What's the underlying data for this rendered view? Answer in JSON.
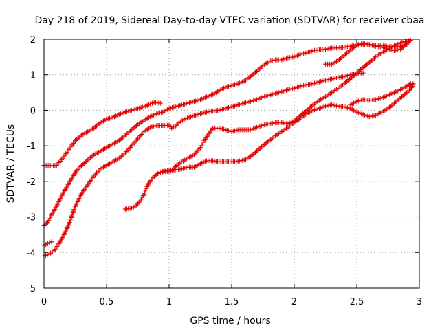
{
  "chart_data": {
    "type": "scatter",
    "title": "Day 218 of 2019, Sidereal Day-to-day VTEC variation (SDTVAR) for receiver cbaa",
    "xlabel": "GPS time / hours",
    "ylabel": "SDTVAR / TECUs",
    "xlim": [
      0,
      3
    ],
    "ylim": [
      -5,
      2
    ],
    "xticks": [
      0,
      0.5,
      1,
      1.5,
      2,
      2.5,
      3
    ],
    "xtick_labels": [
      "0",
      "0.5",
      "1",
      "1.5",
      "2",
      "2.5",
      "3"
    ],
    "yticks": [
      -5,
      -4,
      -3,
      -2,
      -1,
      0,
      1,
      2
    ],
    "ytick_labels": [
      "-5",
      "-4",
      "-3",
      "-2",
      "-1",
      "0",
      "1",
      "2"
    ],
    "grid": true,
    "marker": "+",
    "marker_color": "#e00000",
    "series": [
      {
        "points": [
          [
            0,
            -1.55
          ],
          [
            0.05,
            -1.55
          ],
          [
            0.1,
            -1.55
          ],
          [
            0.15,
            -1.35
          ],
          [
            0.2,
            -1.1
          ],
          [
            0.25,
            -0.85
          ],
          [
            0.3,
            -0.7
          ],
          [
            0.35,
            -0.6
          ],
          [
            0.4,
            -0.5
          ],
          [
            0.45,
            -0.35
          ],
          [
            0.5,
            -0.25
          ],
          [
            0.55,
            -0.2
          ],
          [
            0.6,
            -0.12
          ],
          [
            0.65,
            -0.05
          ],
          [
            0.7,
            0.0
          ],
          [
            0.75,
            0.05
          ],
          [
            0.8,
            0.1
          ],
          [
            0.85,
            0.18
          ],
          [
            0.88,
            0.22
          ],
          [
            0.93,
            0.2
          ]
        ]
      },
      {
        "points": [
          [
            0,
            -3.25
          ],
          [
            0.03,
            -3.15
          ],
          [
            0.06,
            -2.95
          ],
          [
            0.1,
            -2.7
          ],
          [
            0.15,
            -2.35
          ],
          [
            0.2,
            -2.05
          ],
          [
            0.25,
            -1.75
          ],
          [
            0.3,
            -1.55
          ],
          [
            0.35,
            -1.4
          ],
          [
            0.4,
            -1.25
          ],
          [
            0.45,
            -1.15
          ],
          [
            0.5,
            -1.05
          ],
          [
            0.55,
            -0.95
          ],
          [
            0.6,
            -0.85
          ],
          [
            0.65,
            -0.7
          ],
          [
            0.7,
            -0.55
          ],
          [
            0.75,
            -0.4
          ],
          [
            0.8,
            -0.28
          ],
          [
            0.85,
            -0.18
          ],
          [
            0.9,
            -0.1
          ],
          [
            0.95,
            -0.05
          ],
          [
            1.0,
            0.05
          ],
          [
            1.05,
            0.1
          ],
          [
            1.1,
            0.15
          ],
          [
            1.15,
            0.2
          ],
          [
            1.2,
            0.25
          ],
          [
            1.25,
            0.3
          ],
          [
            1.3,
            0.38
          ],
          [
            1.35,
            0.45
          ],
          [
            1.4,
            0.55
          ],
          [
            1.45,
            0.65
          ],
          [
            1.5,
            0.7
          ],
          [
            1.55,
            0.75
          ],
          [
            1.6,
            0.82
          ],
          [
            1.65,
            0.95
          ],
          [
            1.7,
            1.1
          ],
          [
            1.75,
            1.25
          ],
          [
            1.8,
            1.38
          ],
          [
            1.85,
            1.42
          ],
          [
            1.9,
            1.42
          ],
          [
            1.95,
            1.48
          ],
          [
            2.0,
            1.5
          ],
          [
            2.05,
            1.58
          ],
          [
            2.1,
            1.62
          ],
          [
            2.15,
            1.68
          ],
          [
            2.2,
            1.7
          ],
          [
            2.25,
            1.72
          ],
          [
            2.3,
            1.75
          ],
          [
            2.35,
            1.75
          ],
          [
            2.4,
            1.78
          ],
          [
            2.45,
            1.8
          ],
          [
            2.5,
            1.85
          ],
          [
            2.55,
            1.88
          ],
          [
            2.6,
            1.85
          ],
          [
            2.65,
            1.83
          ],
          [
            2.7,
            1.82
          ],
          [
            2.75,
            1.8
          ],
          [
            2.8,
            1.78
          ],
          [
            2.85,
            1.8
          ],
          [
            2.9,
            1.85
          ]
        ]
      },
      {
        "points": [
          [
            0,
            -3.8
          ],
          [
            0.03,
            -3.75
          ],
          [
            0.06,
            -3.7
          ]
        ]
      },
      {
        "points": [
          [
            0,
            -4.1
          ],
          [
            0.04,
            -4.05
          ],
          [
            0.08,
            -3.95
          ],
          [
            0.12,
            -3.75
          ],
          [
            0.16,
            -3.5
          ],
          [
            0.2,
            -3.2
          ],
          [
            0.25,
            -2.7
          ],
          [
            0.3,
            -2.35
          ],
          [
            0.35,
            -2.1
          ],
          [
            0.4,
            -1.85
          ],
          [
            0.45,
            -1.65
          ],
          [
            0.5,
            -1.55
          ],
          [
            0.55,
            -1.45
          ],
          [
            0.6,
            -1.35
          ],
          [
            0.65,
            -1.2
          ],
          [
            0.7,
            -1.0
          ],
          [
            0.75,
            -0.8
          ],
          [
            0.8,
            -0.6
          ],
          [
            0.85,
            -0.48
          ],
          [
            0.9,
            -0.43
          ],
          [
            0.95,
            -0.43
          ],
          [
            1.0,
            -0.42
          ],
          [
            1.02,
            -0.5
          ],
          [
            1.05,
            -0.45
          ],
          [
            1.08,
            -0.35
          ],
          [
            1.12,
            -0.25
          ],
          [
            1.2,
            -0.15
          ],
          [
            1.25,
            -0.1
          ],
          [
            1.3,
            -0.05
          ],
          [
            1.35,
            -0.02
          ],
          [
            1.4,
            0.0
          ],
          [
            1.45,
            0.05
          ],
          [
            1.5,
            0.1
          ],
          [
            1.55,
            0.15
          ],
          [
            1.6,
            0.2
          ],
          [
            1.65,
            0.25
          ],
          [
            1.7,
            0.3
          ],
          [
            1.75,
            0.38
          ],
          [
            1.8,
            0.42
          ],
          [
            1.85,
            0.48
          ],
          [
            1.9,
            0.52
          ],
          [
            1.95,
            0.58
          ],
          [
            2.0,
            0.62
          ],
          [
            2.05,
            0.68
          ],
          [
            2.1,
            0.72
          ],
          [
            2.15,
            0.75
          ],
          [
            2.2,
            0.8
          ],
          [
            2.25,
            0.85
          ],
          [
            2.3,
            0.88
          ],
          [
            2.35,
            0.92
          ],
          [
            2.4,
            0.95
          ],
          [
            2.45,
            1.0
          ],
          [
            2.5,
            1.02
          ],
          [
            2.55,
            1.05
          ]
        ]
      },
      {
        "points": [
          [
            0.65,
            -2.78
          ],
          [
            0.7,
            -2.75
          ],
          [
            0.73,
            -2.7
          ],
          [
            0.77,
            -2.55
          ],
          [
            0.8,
            -2.35
          ],
          [
            0.83,
            -2.1
          ],
          [
            0.87,
            -1.9
          ],
          [
            0.92,
            -1.75
          ],
          [
            0.97,
            -1.72
          ],
          [
            1.0,
            -1.72
          ],
          [
            1.03,
            -1.7
          ],
          [
            1.06,
            -1.55
          ],
          [
            1.1,
            -1.45
          ],
          [
            1.15,
            -1.35
          ],
          [
            1.2,
            -1.25
          ],
          [
            1.25,
            -1.05
          ],
          [
            1.28,
            -0.85
          ],
          [
            1.32,
            -0.65
          ],
          [
            1.35,
            -0.5
          ],
          [
            1.4,
            -0.5
          ],
          [
            1.45,
            -0.55
          ],
          [
            1.5,
            -0.6
          ],
          [
            1.55,
            -0.55
          ],
          [
            1.6,
            -0.55
          ],
          [
            1.65,
            -0.55
          ],
          [
            1.7,
            -0.48
          ],
          [
            1.75,
            -0.42
          ],
          [
            1.8,
            -0.38
          ],
          [
            1.85,
            -0.35
          ],
          [
            1.9,
            -0.35
          ],
          [
            1.95,
            -0.38
          ],
          [
            2.0,
            -0.3
          ],
          [
            2.05,
            -0.15
          ],
          [
            2.1,
            0.0
          ],
          [
            2.15,
            0.15
          ],
          [
            2.2,
            0.28
          ],
          [
            2.25,
            0.38
          ],
          [
            2.3,
            0.5
          ],
          [
            2.35,
            0.62
          ],
          [
            2.4,
            0.75
          ],
          [
            2.45,
            0.9
          ],
          [
            2.5,
            1.05
          ],
          [
            2.55,
            1.2
          ],
          [
            2.6,
            1.35
          ],
          [
            2.65,
            1.5
          ],
          [
            2.7,
            1.62
          ],
          [
            2.75,
            1.72
          ],
          [
            2.8,
            1.82
          ],
          [
            2.85,
            1.9
          ],
          [
            2.9,
            1.95
          ],
          [
            2.93,
            1.97
          ]
        ]
      },
      {
        "points": [
          [
            0.95,
            -1.72
          ],
          [
            1.0,
            -1.68
          ],
          [
            1.05,
            -1.68
          ],
          [
            1.1,
            -1.65
          ],
          [
            1.15,
            -1.6
          ],
          [
            1.2,
            -1.6
          ],
          [
            1.25,
            -1.5
          ],
          [
            1.3,
            -1.42
          ],
          [
            1.35,
            -1.42
          ],
          [
            1.4,
            -1.45
          ],
          [
            1.45,
            -1.45
          ],
          [
            1.5,
            -1.45
          ],
          [
            1.55,
            -1.43
          ],
          [
            1.6,
            -1.4
          ],
          [
            1.65,
            -1.3
          ],
          [
            1.7,
            -1.15
          ],
          [
            1.75,
            -1.0
          ],
          [
            1.8,
            -0.85
          ],
          [
            1.85,
            -0.72
          ],
          [
            1.9,
            -0.6
          ],
          [
            1.95,
            -0.48
          ],
          [
            2.0,
            -0.35
          ],
          [
            2.05,
            -0.22
          ],
          [
            2.1,
            -0.1
          ],
          [
            2.15,
            0.0
          ],
          [
            2.2,
            0.05
          ],
          [
            2.25,
            0.12
          ],
          [
            2.3,
            0.15
          ],
          [
            2.35,
            0.12
          ],
          [
            2.4,
            0.1
          ],
          [
            2.45,
            0.05
          ],
          [
            2.5,
            -0.05
          ],
          [
            2.55,
            -0.12
          ],
          [
            2.6,
            -0.18
          ],
          [
            2.65,
            -0.15
          ],
          [
            2.7,
            -0.05
          ],
          [
            2.75,
            0.05
          ],
          [
            2.8,
            0.2
          ],
          [
            2.85,
            0.35
          ],
          [
            2.9,
            0.5
          ],
          [
            2.93,
            0.6
          ],
          [
            2.95,
            0.72
          ]
        ]
      },
      {
        "points": [
          [
            2.25,
            1.3
          ],
          [
            2.3,
            1.3
          ],
          [
            2.35,
            1.4
          ],
          [
            2.4,
            1.55
          ],
          [
            2.45,
            1.7
          ],
          [
            2.5,
            1.82
          ],
          [
            2.55,
            1.85
          ],
          [
            2.6,
            1.85
          ],
          [
            2.65,
            1.8
          ],
          [
            2.7,
            1.78
          ],
          [
            2.75,
            1.72
          ],
          [
            2.8,
            1.68
          ],
          [
            2.85,
            1.72
          ],
          [
            2.9,
            1.88
          ],
          [
            2.92,
            1.95
          ]
        ]
      },
      {
        "points": [
          [
            2.45,
            0.15
          ],
          [
            2.5,
            0.25
          ],
          [
            2.55,
            0.3
          ],
          [
            2.6,
            0.28
          ],
          [
            2.65,
            0.3
          ],
          [
            2.7,
            0.35
          ],
          [
            2.75,
            0.42
          ],
          [
            2.8,
            0.5
          ],
          [
            2.85,
            0.58
          ],
          [
            2.9,
            0.68
          ],
          [
            2.93,
            0.75
          ],
          [
            2.95,
            0.75
          ]
        ]
      }
    ]
  }
}
